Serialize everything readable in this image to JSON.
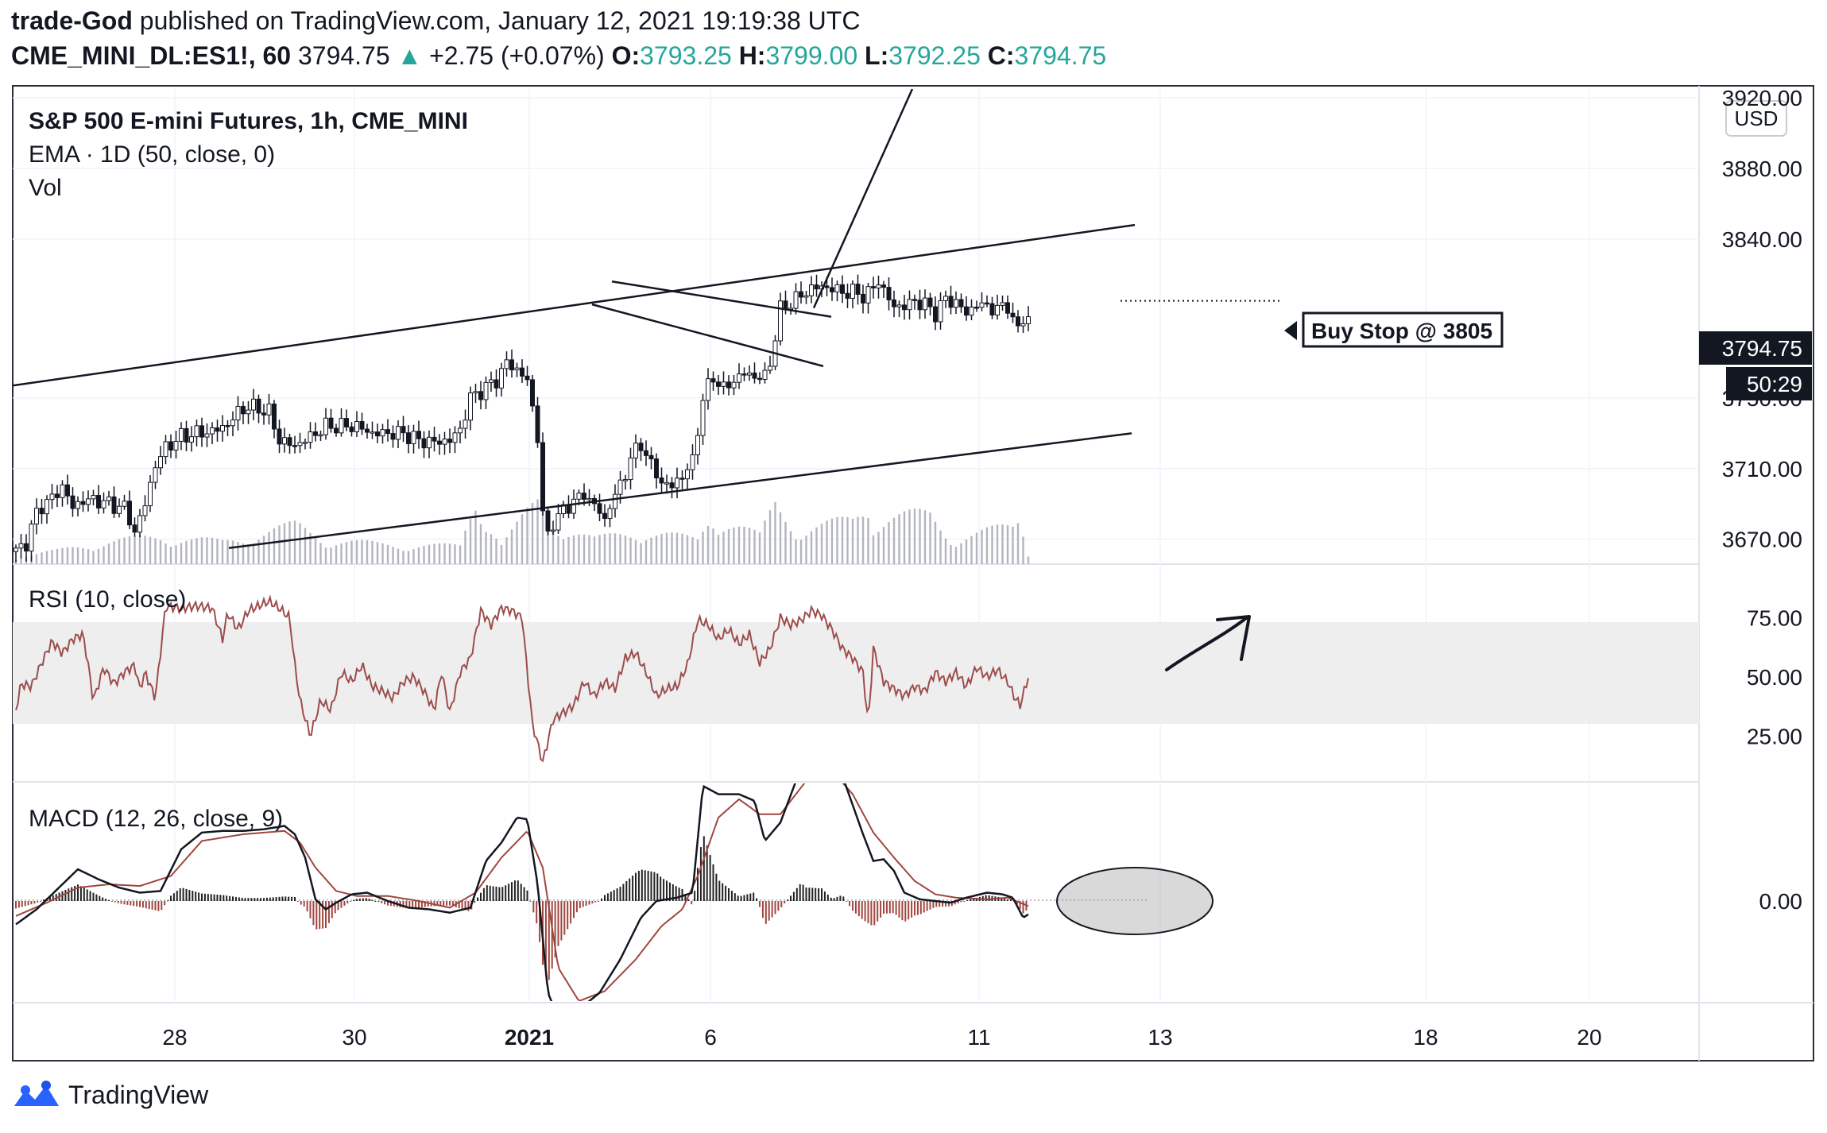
{
  "header": {
    "author": "trade-God",
    "published_text": "published on TradingView.com, January 12, 2021 19:19:38 UTC",
    "symbol": "CME_MINI_DL:ES1!, 60",
    "last": "3794.75",
    "change": "+2.75 (+0.07%)",
    "o_label": "O:",
    "o": "3793.25",
    "h_label": "H:",
    "h": "3799.00",
    "l_label": "L:",
    "l": "3792.25",
    "c_label": "C:",
    "c": "3794.75"
  },
  "legend": {
    "title": "S&P 500 E-mini Futures, 1h, CME_MINI",
    "ema": "EMA · 1D (50, close, 0)",
    "vol": "Vol",
    "rsi": "RSI (10, close)",
    "macd": "MACD (12, 26, close, 9)"
  },
  "currency": "USD",
  "price_label": "3794.75",
  "countdown": "50:29",
  "annotation": "Buy Stop @ 3805",
  "footer_brand": "TradingView",
  "colors": {
    "up": "#26a69a",
    "rsi_line": "#9c4c4c",
    "macd_line": "#131722",
    "signal_line": "#a0463f",
    "hist_pos": "#222222",
    "hist_neg": "#a0463f",
    "rsi_band": "#eeeeee"
  },
  "chart_data": {
    "type": "candlestick",
    "x_ticks": [
      "28",
      "30",
      "2021",
      "6",
      "11",
      "13",
      "18",
      "20"
    ],
    "price_ticks": [
      "3920.00",
      "3880.00",
      "3840.00",
      "3750.00",
      "3710.00",
      "3670.00"
    ],
    "rsi_ticks": [
      "75.00",
      "50.00",
      "25.00"
    ],
    "macd_ticks": [
      "0.00"
    ],
    "price_series": [
      [
        0,
        3663
      ],
      [
        10,
        3668
      ],
      [
        22,
        3688
      ],
      [
        35,
        3693
      ],
      [
        45,
        3700
      ],
      [
        55,
        3688
      ],
      [
        65,
        3692
      ],
      [
        80,
        3692
      ],
      [
        95,
        3689
      ],
      [
        105,
        3688
      ],
      [
        115,
        3674
      ],
      [
        125,
        3690
      ],
      [
        135,
        3712
      ],
      [
        145,
        3722
      ],
      [
        160,
        3728
      ],
      [
        175,
        3730
      ],
      [
        190,
        3731
      ],
      [
        205,
        3735
      ],
      [
        215,
        3742
      ],
      [
        225,
        3745
      ],
      [
        235,
        3744
      ],
      [
        245,
        3742
      ],
      [
        255,
        3726
      ],
      [
        270,
        3723
      ],
      [
        285,
        3728
      ],
      [
        300,
        3734
      ],
      [
        315,
        3734
      ],
      [
        330,
        3734
      ],
      [
        345,
        3730
      ],
      [
        360,
        3730
      ],
      [
        375,
        3730
      ],
      [
        390,
        3726
      ],
      [
        405,
        3725
      ],
      [
        420,
        3726
      ],
      [
        430,
        3732
      ],
      [
        440,
        3750
      ],
      [
        455,
        3756
      ],
      [
        465,
        3760
      ],
      [
        475,
        3770
      ],
      [
        485,
        3766
      ],
      [
        495,
        3760
      ],
      [
        505,
        3728
      ],
      [
        512,
        3667
      ],
      [
        520,
        3680
      ],
      [
        530,
        3686
      ],
      [
        540,
        3692
      ],
      [
        550,
        3695
      ],
      [
        560,
        3690
      ],
      [
        570,
        3680
      ],
      [
        575,
        3690
      ],
      [
        585,
        3700
      ],
      [
        595,
        3716
      ],
      [
        605,
        3724
      ],
      [
        615,
        3712
      ],
      [
        625,
        3702
      ],
      [
        635,
        3700
      ],
      [
        645,
        3706
      ],
      [
        655,
        3714
      ],
      [
        665,
        3750
      ],
      [
        675,
        3762
      ],
      [
        685,
        3755
      ],
      [
        695,
        3760
      ],
      [
        705,
        3764
      ],
      [
        715,
        3762
      ],
      [
        725,
        3762
      ],
      [
        730,
        3770
      ],
      [
        740,
        3800
      ],
      [
        750,
        3804
      ],
      [
        760,
        3808
      ],
      [
        770,
        3812
      ],
      [
        780,
        3813
      ],
      [
        790,
        3812
      ],
      [
        800,
        3810
      ],
      [
        810,
        3810
      ],
      [
        820,
        3808
      ],
      [
        828,
        3810
      ],
      [
        835,
        3817
      ],
      [
        842,
        3808
      ],
      [
        850,
        3802
      ],
      [
        860,
        3802
      ],
      [
        870,
        3805
      ],
      [
        880,
        3803
      ],
      [
        890,
        3798
      ],
      [
        900,
        3806
      ],
      [
        910,
        3804
      ],
      [
        920,
        3798
      ],
      [
        930,
        3803
      ],
      [
        940,
        3802
      ],
      [
        950,
        3800
      ],
      [
        960,
        3803
      ],
      [
        965,
        3794
      ],
      [
        970,
        3788
      ],
      [
        975,
        3796
      ],
      [
        980,
        3795
      ]
    ],
    "volume_series": [
      [
        0,
        6
      ],
      [
        40,
        12
      ],
      [
        70,
        18
      ],
      [
        140,
        25
      ],
      [
        200,
        20
      ],
      [
        272,
        35
      ],
      [
        300,
        22
      ],
      [
        350,
        18
      ],
      [
        430,
        16
      ],
      [
        445,
        60
      ],
      [
        470,
        18
      ],
      [
        505,
        55
      ],
      [
        515,
        40
      ],
      [
        560,
        22
      ],
      [
        600,
        30
      ],
      [
        660,
        22
      ],
      [
        672,
        45
      ],
      [
        720,
        25
      ],
      [
        735,
        55
      ],
      [
        750,
        40
      ],
      [
        760,
        30
      ],
      [
        810,
        40
      ],
      [
        825,
        55
      ],
      [
        830,
        40
      ],
      [
        885,
        45
      ],
      [
        900,
        30
      ],
      [
        910,
        22
      ],
      [
        965,
        35
      ],
      [
        972,
        45
      ],
      [
        980,
        10
      ]
    ],
    "rsi_series": [
      [
        0,
        36
      ],
      [
        5,
        47
      ],
      [
        15,
        46
      ],
      [
        25,
        56
      ],
      [
        35,
        65
      ],
      [
        45,
        60
      ],
      [
        55,
        66
      ],
      [
        65,
        68
      ],
      [
        70,
        55
      ],
      [
        75,
        40
      ],
      [
        85,
        54
      ],
      [
        95,
        47
      ],
      [
        105,
        52
      ],
      [
        115,
        55
      ],
      [
        120,
        45
      ],
      [
        125,
        52
      ],
      [
        135,
        41
      ],
      [
        145,
        80
      ],
      [
        160,
        79
      ],
      [
        175,
        80
      ],
      [
        190,
        79
      ],
      [
        200,
        66
      ],
      [
        205,
        77
      ],
      [
        215,
        70
      ],
      [
        225,
        78
      ],
      [
        235,
        80
      ],
      [
        245,
        82
      ],
      [
        255,
        79
      ],
      [
        265,
        75
      ],
      [
        270,
        55
      ],
      [
        275,
        40
      ],
      [
        285,
        25
      ],
      [
        295,
        40
      ],
      [
        305,
        36
      ],
      [
        315,
        52
      ],
      [
        325,
        48
      ],
      [
        335,
        55
      ],
      [
        345,
        46
      ],
      [
        355,
        44
      ],
      [
        365,
        41
      ],
      [
        375,
        48
      ],
      [
        385,
        50
      ],
      [
        395,
        44
      ],
      [
        405,
        36
      ],
      [
        412,
        52
      ],
      [
        420,
        35
      ],
      [
        430,
        52
      ],
      [
        440,
        58
      ],
      [
        450,
        78
      ],
      [
        460,
        72
      ],
      [
        470,
        79
      ],
      [
        480,
        78
      ],
      [
        490,
        75
      ],
      [
        500,
        30
      ],
      [
        510,
        14
      ],
      [
        520,
        32
      ],
      [
        530,
        35
      ],
      [
        540,
        38
      ],
      [
        550,
        48
      ],
      [
        560,
        42
      ],
      [
        570,
        48
      ],
      [
        580,
        45
      ],
      [
        590,
        58
      ],
      [
        600,
        60
      ],
      [
        610,
        52
      ],
      [
        620,
        42
      ],
      [
        630,
        45
      ],
      [
        640,
        46
      ],
      [
        650,
        55
      ],
      [
        660,
        74
      ],
      [
        670,
        72
      ],
      [
        680,
        66
      ],
      [
        690,
        70
      ],
      [
        700,
        64
      ],
      [
        710,
        68
      ],
      [
        720,
        56
      ],
      [
        730,
        62
      ],
      [
        740,
        75
      ],
      [
        750,
        72
      ],
      [
        760,
        74
      ],
      [
        770,
        78
      ],
      [
        780,
        76
      ],
      [
        790,
        70
      ],
      [
        800,
        62
      ],
      [
        810,
        58
      ],
      [
        820,
        52
      ],
      [
        825,
        30
      ],
      [
        830,
        62
      ],
      [
        840,
        48
      ],
      [
        850,
        45
      ],
      [
        860,
        42
      ],
      [
        870,
        46
      ],
      [
        880,
        44
      ],
      [
        890,
        52
      ],
      [
        900,
        48
      ],
      [
        910,
        52
      ],
      [
        920,
        46
      ],
      [
        930,
        54
      ],
      [
        940,
        50
      ],
      [
        950,
        53
      ],
      [
        960,
        48
      ],
      [
        966,
        42
      ],
      [
        972,
        38
      ],
      [
        980,
        50
      ]
    ],
    "macd_series": [
      [
        0,
        -28
      ],
      [
        20,
        -10
      ],
      [
        40,
        14
      ],
      [
        60,
        38
      ],
      [
        80,
        26
      ],
      [
        100,
        16
      ],
      [
        120,
        10
      ],
      [
        140,
        12
      ],
      [
        160,
        62
      ],
      [
        180,
        82
      ],
      [
        200,
        84
      ],
      [
        220,
        84
      ],
      [
        240,
        86
      ],
      [
        260,
        90
      ],
      [
        270,
        80
      ],
      [
        280,
        52
      ],
      [
        290,
        2
      ],
      [
        300,
        -10
      ],
      [
        310,
        -2
      ],
      [
        325,
        8
      ],
      [
        340,
        10
      ],
      [
        360,
        0
      ],
      [
        380,
        -8
      ],
      [
        400,
        -10
      ],
      [
        420,
        -14
      ],
      [
        440,
        -8
      ],
      [
        455,
        48
      ],
      [
        470,
        70
      ],
      [
        485,
        100
      ],
      [
        495,
        98
      ],
      [
        505,
        20
      ],
      [
        515,
        -110
      ],
      [
        525,
        -140
      ],
      [
        545,
        -130
      ],
      [
        565,
        -110
      ],
      [
        585,
        -70
      ],
      [
        605,
        -20
      ],
      [
        620,
        0
      ],
      [
        640,
        4
      ],
      [
        655,
        10
      ],
      [
        665,
        138
      ],
      [
        680,
        128
      ],
      [
        700,
        128
      ],
      [
        715,
        120
      ],
      [
        725,
        72
      ],
      [
        740,
        94
      ],
      [
        760,
        160
      ],
      [
        780,
        168
      ],
      [
        800,
        150
      ],
      [
        820,
        80
      ],
      [
        830,
        48
      ],
      [
        840,
        50
      ],
      [
        850,
        36
      ],
      [
        860,
        10
      ],
      [
        875,
        2
      ],
      [
        890,
        0
      ],
      [
        905,
        -2
      ],
      [
        920,
        4
      ],
      [
        940,
        10
      ],
      [
        955,
        8
      ],
      [
        965,
        4
      ],
      [
        975,
        -20
      ],
      [
        980,
        -16
      ]
    ],
    "signal_series": [
      [
        0,
        -18
      ],
      [
        30,
        -2
      ],
      [
        60,
        16
      ],
      [
        90,
        20
      ],
      [
        120,
        18
      ],
      [
        150,
        30
      ],
      [
        180,
        72
      ],
      [
        220,
        80
      ],
      [
        260,
        84
      ],
      [
        275,
        70
      ],
      [
        290,
        40
      ],
      [
        310,
        12
      ],
      [
        330,
        6
      ],
      [
        360,
        6
      ],
      [
        390,
        0
      ],
      [
        420,
        -8
      ],
      [
        445,
        10
      ],
      [
        470,
        52
      ],
      [
        495,
        84
      ],
      [
        510,
        40
      ],
      [
        525,
        -80
      ],
      [
        545,
        -120
      ],
      [
        570,
        -108
      ],
      [
        600,
        -70
      ],
      [
        625,
        -30
      ],
      [
        645,
        -10
      ],
      [
        660,
        30
      ],
      [
        680,
        100
      ],
      [
        700,
        122
      ],
      [
        720,
        104
      ],
      [
        740,
        104
      ],
      [
        765,
        144
      ],
      [
        790,
        156
      ],
      [
        810,
        128
      ],
      [
        830,
        82
      ],
      [
        850,
        52
      ],
      [
        870,
        24
      ],
      [
        890,
        8
      ],
      [
        910,
        4
      ],
      [
        940,
        2
      ],
      [
        960,
        4
      ],
      [
        980,
        -6
      ]
    ],
    "price_ylim": [
      3655,
      3925
    ],
    "rsi_ylim": [
      0,
      100
    ],
    "macd_ylim": [
      -175,
      195
    ],
    "drawings": {
      "upper_channel": [
        [
          0,
          3756
        ],
        [
          1428,
          3848
        ]
      ],
      "lower_channel": [
        [
          288,
          3665
        ],
        [
          1424,
          3730
        ]
      ],
      "flag_top": [
        [
          770,
          3816
        ],
        [
          1046,
          3796
        ]
      ],
      "flag_bottom": [
        [
          745,
          3803
        ],
        [
          1036,
          3768
        ]
      ],
      "breakout_line": [
        [
          1024,
          3801
        ],
        [
          1148,
          3925
        ]
      ],
      "buy_stop_level": 3805
    }
  }
}
